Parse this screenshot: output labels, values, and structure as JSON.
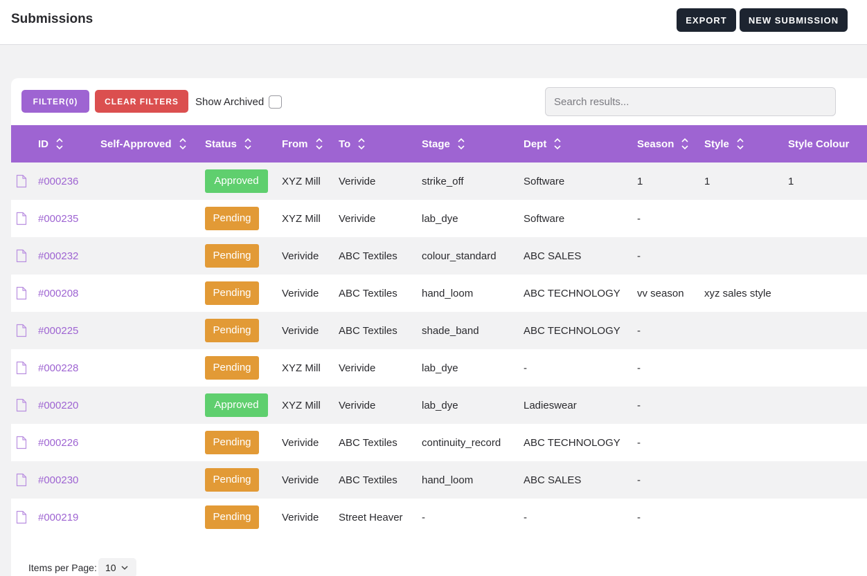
{
  "header": {
    "title": "Submissions",
    "export_label": "EXPORT",
    "new_label": "NEW SUBMISSION"
  },
  "toolbar": {
    "filter_label": "FILTER(0)",
    "clear_label": "CLEAR FILTERS",
    "archived_label": "Show Archived",
    "archived_checked": false,
    "search_placeholder": "Search results..."
  },
  "table": {
    "columns": [
      "ID",
      "Self-Approved",
      "Status",
      "From",
      "To",
      "Stage",
      "Dept",
      "Season",
      "Style",
      "Style Colour"
    ],
    "rows": [
      {
        "id": "#000236",
        "self_approved": "",
        "status": "Approved",
        "from": "XYZ Mill",
        "to": "Verivide",
        "stage": "strike_off",
        "dept": "Software",
        "season": "1",
        "style": "1",
        "style_colour": "1"
      },
      {
        "id": "#000235",
        "self_approved": "",
        "status": "Pending",
        "from": "XYZ Mill",
        "to": "Verivide",
        "stage": "lab_dye",
        "dept": "Software",
        "season": "-",
        "style": "",
        "style_colour": ""
      },
      {
        "id": "#000232",
        "self_approved": "",
        "status": "Pending",
        "from": "Verivide",
        "to": "ABC Textiles",
        "stage": "colour_standard",
        "dept": "ABC SALES",
        "season": "-",
        "style": "",
        "style_colour": ""
      },
      {
        "id": "#000208",
        "self_approved": "",
        "status": "Pending",
        "from": "Verivide",
        "to": "ABC Textiles",
        "stage": "hand_loom",
        "dept": "ABC TECHNOLOGY",
        "season": "vv season",
        "style": "xyz sales style",
        "style_colour": ""
      },
      {
        "id": "#000225",
        "self_approved": "",
        "status": "Pending",
        "from": "Verivide",
        "to": "ABC Textiles",
        "stage": "shade_band",
        "dept": "ABC TECHNOLOGY",
        "season": "-",
        "style": "",
        "style_colour": ""
      },
      {
        "id": "#000228",
        "self_approved": "",
        "status": "Pending",
        "from": "XYZ Mill",
        "to": "Verivide",
        "stage": "lab_dye",
        "dept": "-",
        "season": "-",
        "style": "",
        "style_colour": ""
      },
      {
        "id": "#000220",
        "self_approved": "",
        "status": "Approved",
        "from": "XYZ Mill",
        "to": "Verivide",
        "stage": "lab_dye",
        "dept": "Ladieswear",
        "season": "-",
        "style": "",
        "style_colour": ""
      },
      {
        "id": "#000226",
        "self_approved": "",
        "status": "Pending",
        "from": "Verivide",
        "to": "ABC Textiles",
        "stage": "continuity_record",
        "dept": "ABC TECHNOLOGY",
        "season": "-",
        "style": "",
        "style_colour": ""
      },
      {
        "id": "#000230",
        "self_approved": "",
        "status": "Pending",
        "from": "Verivide",
        "to": "ABC Textiles",
        "stage": "hand_loom",
        "dept": "ABC SALES",
        "season": "-",
        "style": "",
        "style_colour": ""
      },
      {
        "id": "#000219",
        "self_approved": "",
        "status": "Pending",
        "from": "Verivide",
        "to": "Street Heaver",
        "stage": "-",
        "dept": "-",
        "season": "-",
        "style": "",
        "style_colour": ""
      }
    ]
  },
  "pagination": {
    "items_per_page_label": "Items per Page:",
    "items_per_page_value": "10"
  },
  "icons": {
    "row_icon": "document-icon",
    "sort_icon": "sort-icon",
    "select_icon": "chevron-down-icon"
  },
  "colors": {
    "accent": "#9e64d2",
    "approved": "#5fcf6e",
    "pending": "#e29a36",
    "danger": "#db4f4f",
    "dark": "#1d2430"
  }
}
